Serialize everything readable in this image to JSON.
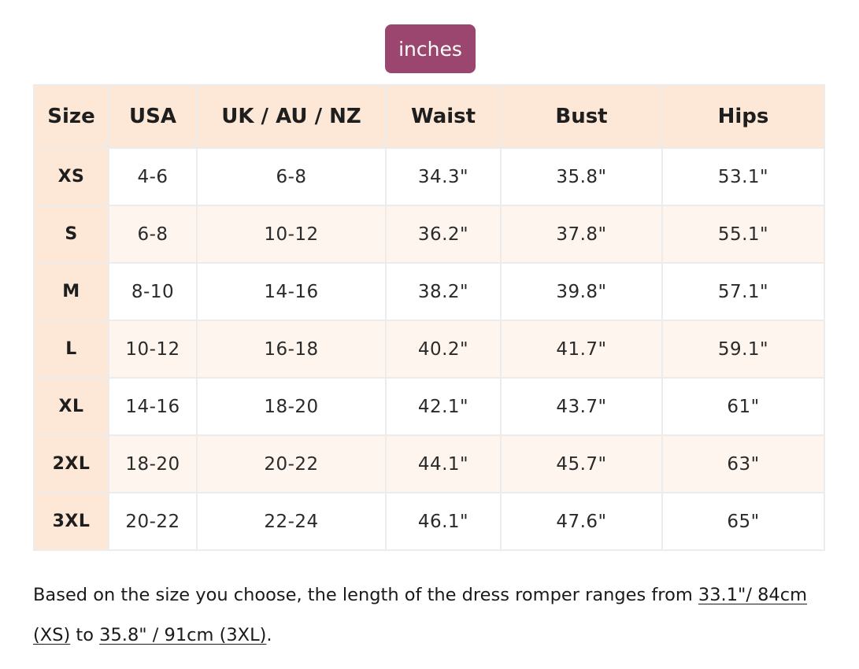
{
  "unit_toggle": {
    "label": "inches"
  },
  "table": {
    "headers": [
      "Size",
      "USA",
      "UK / AU / NZ",
      "Waist",
      "Bust",
      "Hips"
    ],
    "rows": [
      [
        "XS",
        "4-6",
        "6-8",
        "34.3\"",
        "35.8\"",
        "53.1\""
      ],
      [
        "S",
        "6-8",
        "10-12",
        "36.2\"",
        "37.8\"",
        "55.1\""
      ],
      [
        "M",
        "8-10",
        "14-16",
        "38.2\"",
        "39.8\"",
        "57.1\""
      ],
      [
        "L",
        "10-12",
        "16-18",
        "40.2\"",
        "41.7\"",
        "59.1\""
      ],
      [
        "XL",
        "14-16",
        "18-20",
        "42.1\"",
        "43.7\"",
        "61\""
      ],
      [
        "2XL",
        "18-20",
        "20-22",
        "44.1\"",
        "45.7\"",
        "63\""
      ],
      [
        "3XL",
        "20-22",
        "22-24",
        "46.1\"",
        "47.6\"",
        "65\""
      ]
    ]
  },
  "note": {
    "intro": "Based on the size you choose, the length of the dress romper ranges from ",
    "link_min": "33.1\"/ 84cm (XS)",
    "middle": " to ",
    "link_max": "35.8\" / 91cm (3XL)",
    "end": "."
  },
  "colors": {
    "accent_button": "#9b466e",
    "header_bg": "#fde8d7",
    "alt_row_bg": "#fdf5ee",
    "border": "#ececec"
  }
}
